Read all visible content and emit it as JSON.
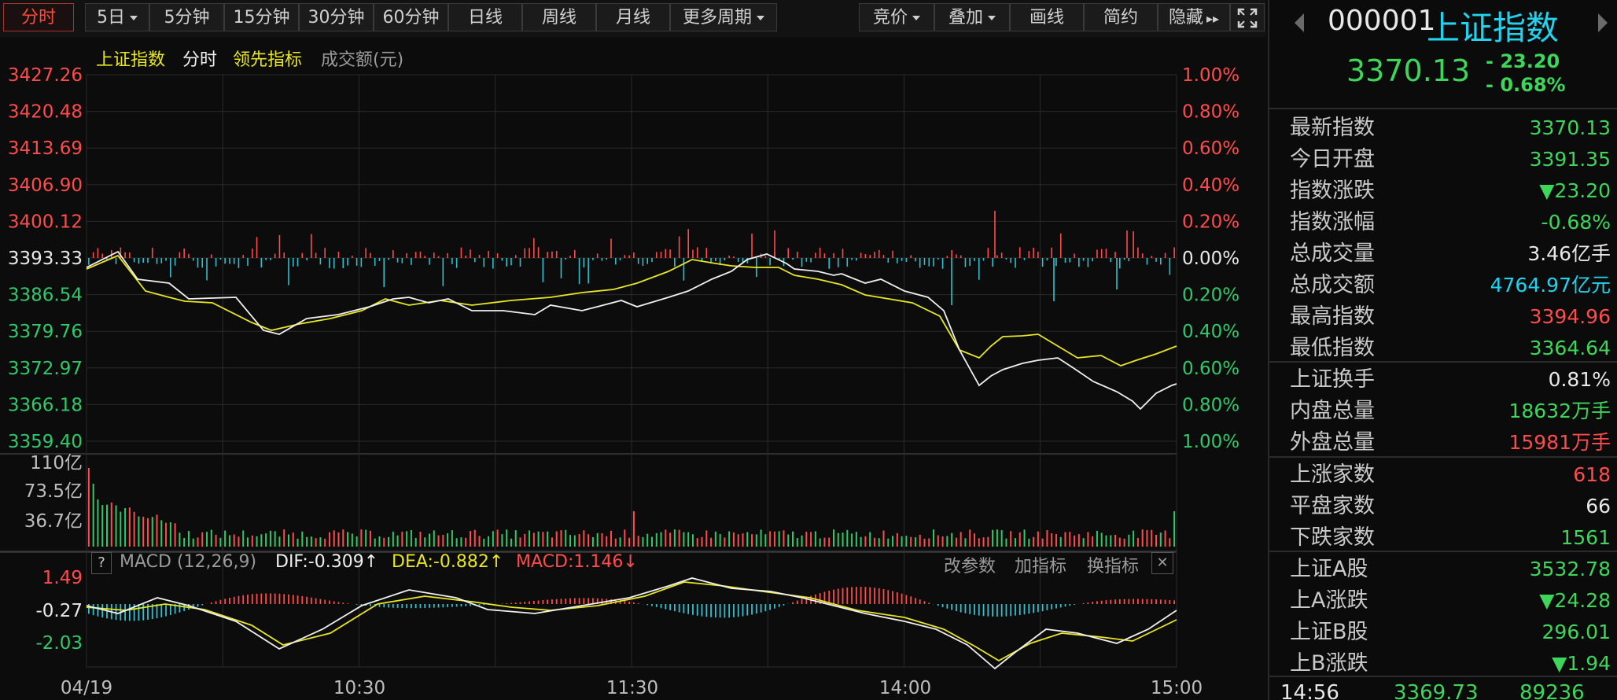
{
  "toolbar": {
    "periods": [
      "分时",
      "5日",
      "5分钟",
      "15分钟",
      "30分钟",
      "60分钟",
      "日线",
      "周线",
      "月线",
      "更多周期"
    ],
    "active_period": "分时",
    "tools": [
      "竞价",
      "叠加",
      "画线",
      "简约",
      "隐藏"
    ],
    "fullscreen_icon": "fullscreen-icon"
  },
  "chart_legend": {
    "index_name": "上证指数",
    "mode": "分时",
    "leading": "领先指标",
    "volume": "成交额(元)"
  },
  "price_axis": {
    "left": [
      "3427.26",
      "3420.48",
      "3413.69",
      "3406.90",
      "3400.12",
      "3393.33",
      "3386.54",
      "3379.76",
      "3372.97",
      "3366.18",
      "3359.40"
    ],
    "right": [
      "1.00%",
      "0.80%",
      "0.60%",
      "0.40%",
      "0.20%",
      "0.00%",
      "0.20%",
      "0.40%",
      "0.60%",
      "0.80%",
      "1.00%"
    ]
  },
  "volume_axis": [
    "110亿",
    "73.5亿",
    "36.7亿"
  ],
  "macd": {
    "help": "?",
    "title": "MACD (12,26,9)",
    "dif": "DIF:-0.309",
    "dea": "DEA:-0.882",
    "macd": "MACD:1.146",
    "axis": [
      "1.49",
      "-0.27",
      "-2.03"
    ],
    "actions": [
      "改参数",
      "加指标",
      "换指标"
    ],
    "close": "✕"
  },
  "time_axis": [
    "04/19",
    "10:30",
    "11:30",
    "14:00",
    "15:00"
  ],
  "right_panel": {
    "code": "000001",
    "name": "上证指数",
    "price": "3370.13",
    "change": "- 23.20",
    "change_pct": "- 0.68%",
    "rows": [
      {
        "label": "最新指数",
        "value": "3370.13",
        "color": "green"
      },
      {
        "label": "今日开盘",
        "value": "3391.35",
        "color": "green"
      },
      {
        "label": "指数涨跌",
        "value": "▼23.20",
        "color": "green"
      },
      {
        "label": "指数涨幅",
        "value": "-0.68%",
        "color": "green"
      },
      {
        "label": "总成交量",
        "value": "3.46亿手",
        "color": "white"
      },
      {
        "label": "总成交额",
        "value": "4764.97亿元",
        "color": "cyan"
      },
      {
        "label": "最高指数",
        "value": "3394.96",
        "color": "red"
      },
      {
        "label": "最低指数",
        "value": "3364.64",
        "color": "green"
      },
      {
        "label": "上证换手",
        "value": "0.81%",
        "color": "white"
      },
      {
        "label": "内盘总量",
        "value": "18632万手",
        "color": "green"
      },
      {
        "label": "外盘总量",
        "value": "15981万手",
        "color": "red"
      },
      {
        "label": "上涨家数",
        "value": "618",
        "color": "red"
      },
      {
        "label": "平盘家数",
        "value": "66",
        "color": "white"
      },
      {
        "label": "下跌家数",
        "value": "1561",
        "color": "green"
      },
      {
        "label": "上证A股",
        "value": "3532.78",
        "color": "green"
      },
      {
        "label": "上A涨跌",
        "value": "▼24.28",
        "color": "green"
      },
      {
        "label": "上证B股",
        "value": "296.01",
        "color": "green"
      },
      {
        "label": "上B涨跌",
        "value": "▼1.94",
        "color": "green"
      }
    ],
    "tick": {
      "time": "14:56",
      "price": "3369.73",
      "volume": "89236"
    }
  },
  "colors": {
    "price_line": "#f0f0f0",
    "avg_line": "#e8e61f",
    "up": "#ff4b4b",
    "down": "#2fc1cf",
    "green_bar": "#2fc96a",
    "grid": "#2a2a2a"
  }
}
